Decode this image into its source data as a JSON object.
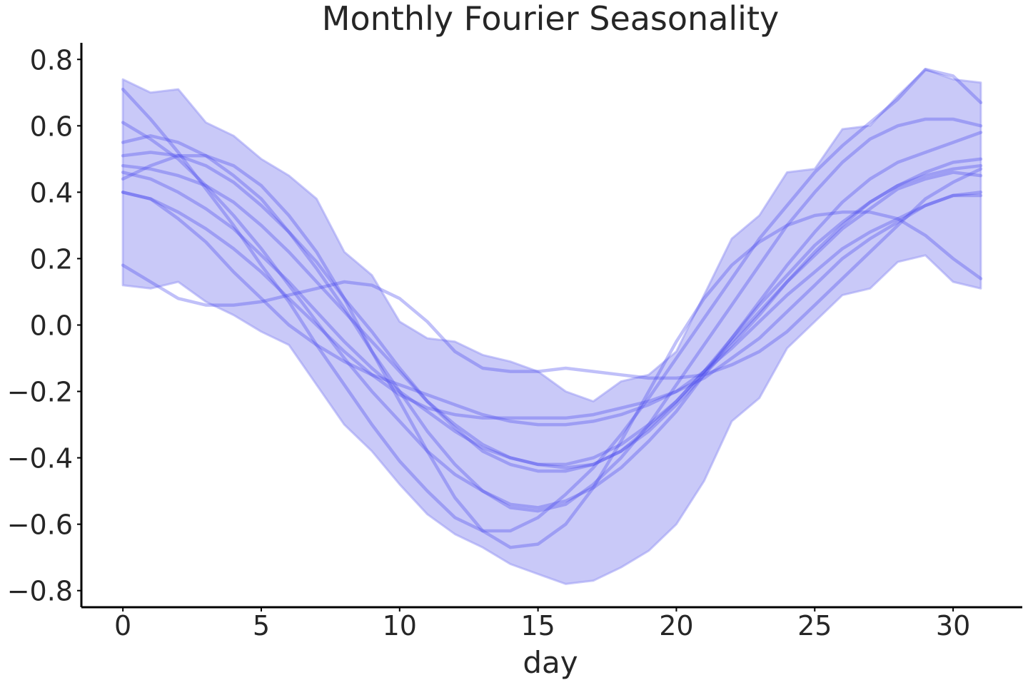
{
  "chart_data": {
    "type": "line",
    "title": "Monthly Fourier Seasonality",
    "xlabel": "day",
    "ylabel": "",
    "xlim": [
      -1.5,
      32.5
    ],
    "ylim": [
      -0.85,
      0.85
    ],
    "xticks": [
      0,
      5,
      10,
      15,
      20,
      25,
      30
    ],
    "yticks": [
      0.8,
      0.6,
      0.4,
      0.2,
      0.0,
      -0.2,
      -0.4,
      -0.6,
      -0.8
    ],
    "xtick_labels": [
      "0",
      "5",
      "10",
      "15",
      "20",
      "25",
      "30"
    ],
    "ytick_labels": [
      "0.8",
      "0.6",
      "0.4",
      "0.2",
      "0.0",
      "−0.2",
      "−0.4",
      "−0.6",
      "−0.8"
    ],
    "grid": false,
    "colors": {
      "line": "#4a4aee",
      "band_fill": "#c9c9f8",
      "band_edge": "#9a9af4",
      "axis": "#000000",
      "text": "#262626"
    },
    "x": [
      0,
      1,
      2,
      3,
      4,
      5,
      6,
      7,
      8,
      9,
      10,
      11,
      12,
      13,
      14,
      15,
      16,
      17,
      18,
      19,
      20,
      21,
      22,
      23,
      24,
      25,
      26,
      27,
      28,
      29,
      30,
      31
    ],
    "band": {
      "upper": [
        0.74,
        0.7,
        0.71,
        0.61,
        0.57,
        0.5,
        0.45,
        0.38,
        0.22,
        0.15,
        0.01,
        -0.04,
        -0.05,
        -0.09,
        -0.11,
        -0.14,
        -0.2,
        -0.23,
        -0.17,
        -0.15,
        -0.08,
        0.09,
        0.26,
        0.33,
        0.46,
        0.47,
        0.59,
        0.6,
        0.69,
        0.77,
        0.74,
        0.73
      ],
      "lower": [
        0.12,
        0.11,
        0.13,
        0.07,
        0.03,
        -0.02,
        -0.06,
        -0.18,
        -0.3,
        -0.38,
        -0.48,
        -0.57,
        -0.63,
        -0.67,
        -0.72,
        -0.75,
        -0.78,
        -0.77,
        -0.73,
        -0.68,
        -0.6,
        -0.47,
        -0.29,
        -0.22,
        -0.07,
        0.01,
        0.09,
        0.11,
        0.19,
        0.21,
        0.13,
        0.11
      ]
    },
    "series": [
      {
        "values": [
          0.71,
          0.62,
          0.52,
          0.41,
          0.3,
          0.18,
          0.07,
          -0.06,
          -0.18,
          -0.3,
          -0.41,
          -0.5,
          -0.58,
          -0.62,
          -0.62,
          -0.58,
          -0.51,
          -0.43,
          -0.33,
          -0.22,
          -0.1,
          0.02,
          0.14,
          0.26,
          0.36,
          0.46,
          0.54,
          0.61,
          0.68,
          0.77,
          0.75,
          0.67
        ]
      },
      {
        "values": [
          0.61,
          0.56,
          0.5,
          0.42,
          0.33,
          0.23,
          0.12,
          0.01,
          -0.1,
          -0.2,
          -0.29,
          -0.38,
          -0.45,
          -0.5,
          -0.54,
          -0.55,
          -0.53,
          -0.49,
          -0.43,
          -0.35,
          -0.26,
          -0.15,
          -0.04,
          0.07,
          0.18,
          0.28,
          0.37,
          0.44,
          0.49,
          0.52,
          0.55,
          0.58
        ]
      },
      {
        "values": [
          0.55,
          0.57,
          0.55,
          0.51,
          0.45,
          0.38,
          0.28,
          0.17,
          0.05,
          -0.08,
          -0.2,
          -0.32,
          -0.42,
          -0.5,
          -0.55,
          -0.56,
          -0.54,
          -0.48,
          -0.4,
          -0.3,
          -0.18,
          -0.06,
          0.06,
          0.18,
          0.3,
          0.4,
          0.49,
          0.56,
          0.6,
          0.62,
          0.62,
          0.6
        ]
      },
      {
        "values": [
          0.51,
          0.52,
          0.51,
          0.48,
          0.43,
          0.36,
          0.28,
          0.19,
          0.08,
          -0.02,
          -0.13,
          -0.23,
          -0.31,
          -0.38,
          -0.42,
          -0.44,
          -0.44,
          -0.42,
          -0.38,
          -0.31,
          -0.23,
          -0.14,
          -0.04,
          0.06,
          0.15,
          0.24,
          0.31,
          0.37,
          0.42,
          0.45,
          0.47,
          0.48
        ]
      },
      {
        "values": [
          0.48,
          0.47,
          0.45,
          0.42,
          0.37,
          0.3,
          0.22,
          0.13,
          0.04,
          -0.05,
          -0.14,
          -0.23,
          -0.3,
          -0.36,
          -0.4,
          -0.42,
          -0.42,
          -0.4,
          -0.36,
          -0.3,
          -0.23,
          -0.14,
          -0.05,
          0.04,
          0.13,
          0.22,
          0.3,
          0.37,
          0.42,
          0.46,
          0.49,
          0.5
        ]
      },
      {
        "values": [
          0.46,
          0.44,
          0.4,
          0.35,
          0.29,
          0.21,
          0.13,
          0.04,
          -0.05,
          -0.13,
          -0.2,
          -0.26,
          -0.32,
          -0.37,
          -0.4,
          -0.42,
          -0.43,
          -0.42,
          -0.38,
          -0.32,
          -0.24,
          -0.15,
          -0.06,
          0.03,
          0.13,
          0.21,
          0.29,
          0.35,
          0.41,
          0.44,
          0.46,
          0.45
        ]
      },
      {
        "values": [
          0.44,
          0.48,
          0.51,
          0.51,
          0.48,
          0.42,
          0.33,
          0.22,
          0.08,
          -0.08,
          -0.23,
          -0.38,
          -0.52,
          -0.62,
          -0.67,
          -0.66,
          -0.6,
          -0.49,
          -0.35,
          -0.2,
          -0.05,
          0.08,
          0.18,
          0.25,
          0.3,
          0.33,
          0.34,
          0.34,
          0.32,
          0.27,
          0.2,
          0.14
        ]
      },
      {
        "values": [
          0.4,
          0.38,
          0.32,
          0.25,
          0.16,
          0.08,
          0.0,
          -0.06,
          -0.11,
          -0.15,
          -0.18,
          -0.21,
          -0.24,
          -0.27,
          -0.29,
          -0.3,
          -0.3,
          -0.29,
          -0.27,
          -0.24,
          -0.2,
          -0.14,
          -0.07,
          0.01,
          0.09,
          0.16,
          0.23,
          0.28,
          0.32,
          0.36,
          0.39,
          0.39
        ]
      },
      {
        "values": [
          0.4,
          0.38,
          0.34,
          0.29,
          0.23,
          0.16,
          0.08,
          0.0,
          -0.08,
          -0.15,
          -0.21,
          -0.25,
          -0.27,
          -0.28,
          -0.28,
          -0.28,
          -0.28,
          -0.27,
          -0.25,
          -0.23,
          -0.2,
          -0.16,
          -0.1,
          -0.04,
          0.04,
          0.12,
          0.2,
          0.26,
          0.31,
          0.36,
          0.39,
          0.4
        ]
      },
      {
        "values": [
          0.18,
          0.13,
          0.08,
          0.06,
          0.06,
          0.07,
          0.09,
          0.11,
          0.13,
          0.12,
          0.08,
          0.01,
          -0.08,
          -0.13,
          -0.14,
          -0.14,
          -0.13,
          -0.14,
          -0.15,
          -0.16,
          -0.16,
          -0.15,
          -0.12,
          -0.08,
          -0.02,
          0.06,
          0.14,
          0.22,
          0.3,
          0.38,
          0.43,
          0.47
        ]
      }
    ]
  }
}
